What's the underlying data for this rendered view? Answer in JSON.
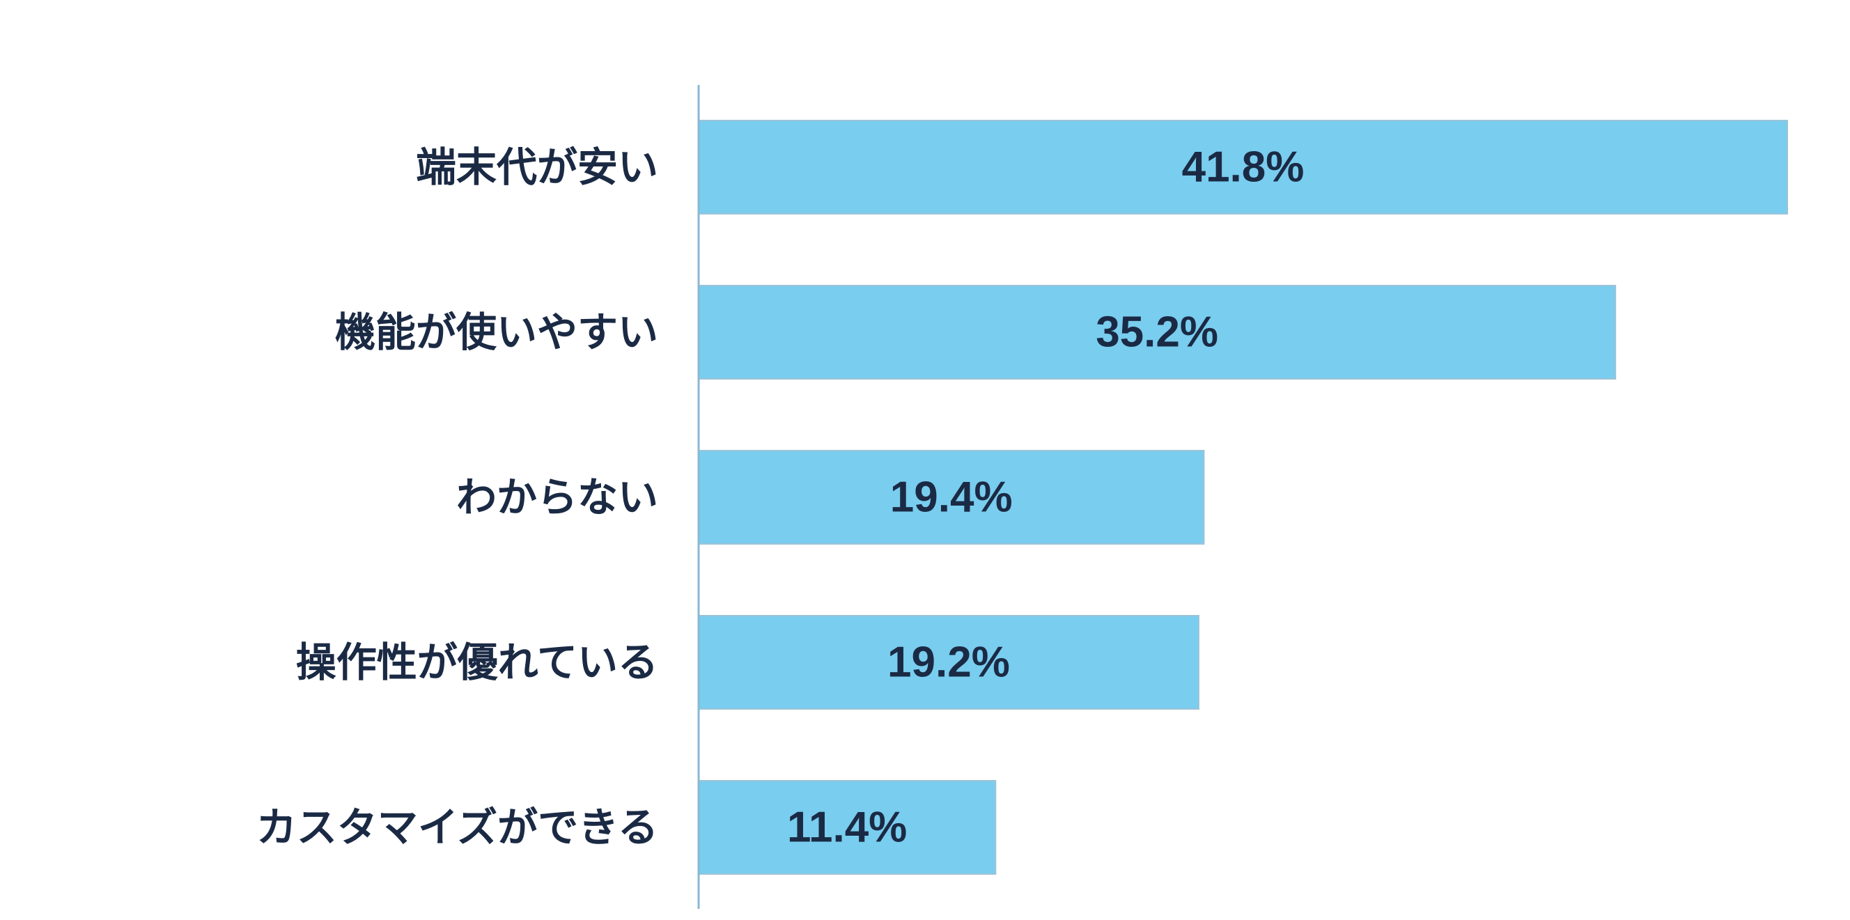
{
  "chart_data": {
    "type": "bar",
    "orientation": "horizontal",
    "categories": [
      "端末代が安い",
      "機能が使いやすい",
      "わからない",
      "操作性が優れている",
      "カスタマイズができる"
    ],
    "values": [
      41.8,
      35.2,
      19.4,
      19.2,
      11.4
    ],
    "data_labels": [
      "41.8%",
      "35.2%",
      "19.4%",
      "19.2%",
      "11.4%"
    ],
    "unit": "%",
    "xlim": [
      0,
      41.8
    ],
    "grid": false,
    "legend": "none",
    "bar_color": "#79cdef",
    "bar_edge_color": "#9cc3d6",
    "text_color": "#1b2a44",
    "axis_color": "#8ab8d2"
  }
}
